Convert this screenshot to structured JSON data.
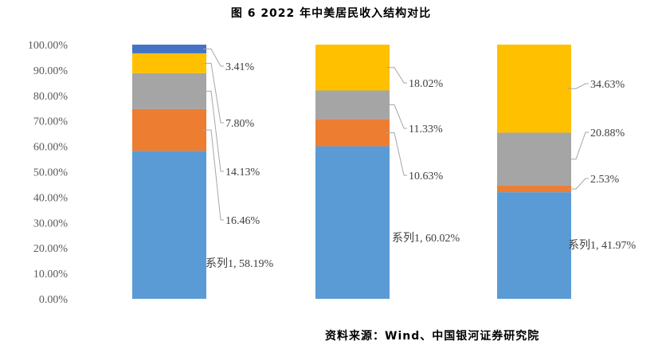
{
  "title": "图 6  2022 年中美居民收入结构对比",
  "source": "资料来源：Wind、中国银河证券研究院",
  "chart_data": {
    "type": "bar",
    "stacked": true,
    "categories": [
      "",
      "",
      ""
    ],
    "ylim": [
      0,
      100
    ],
    "y_tick_labels": [
      "0.00%",
      "10.00%",
      "20.00%",
      "30.00%",
      "40.00%",
      "50.00%",
      "60.00%",
      "70.00%",
      "80.00%",
      "90.00%",
      "100.00%"
    ],
    "legend": "none",
    "grid": false,
    "series": [
      {
        "name": "系列1",
        "color": "#5B9BD5",
        "values": [
          58.19,
          60.02,
          41.97
        ],
        "labels": [
          "系列1, 58.19%",
          "系列1, 60.02%",
          "系列1, 41.97%"
        ]
      },
      {
        "color": "#ED7D31",
        "values": [
          16.46,
          10.63,
          2.53
        ],
        "labels": [
          "16.46%",
          "10.63%",
          "2.53%"
        ]
      },
      {
        "color": "#A5A5A5",
        "values": [
          14.13,
          11.33,
          20.88
        ],
        "labels": [
          "14.13%",
          "11.33%",
          "20.88%"
        ]
      },
      {
        "color": "#FFC000",
        "values": [
          7.8,
          18.02,
          34.63
        ],
        "labels": [
          "7.80%",
          "18.02%",
          "34.63%"
        ]
      },
      {
        "color": "#4472C4",
        "values": [
          3.41,
          0,
          0
        ],
        "labels": [
          "3.41%",
          "",
          ""
        ]
      }
    ]
  }
}
